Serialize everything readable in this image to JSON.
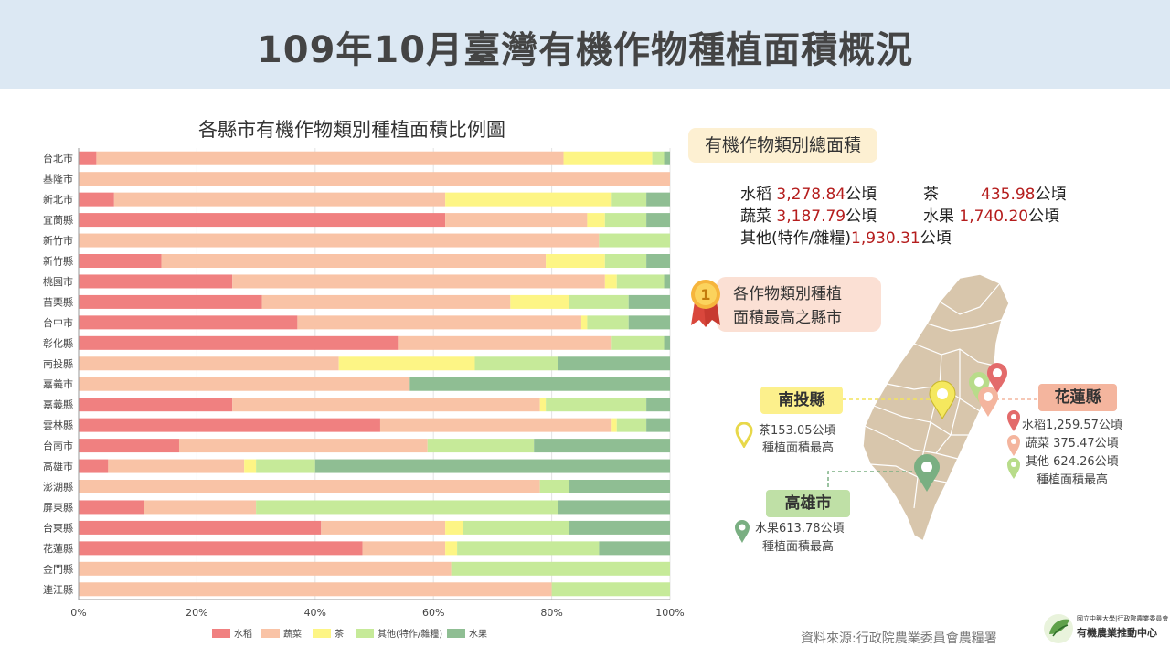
{
  "title": "109年10月臺灣有機作物種植面積概況",
  "colors": {
    "rice": "#f08080",
    "veg": "#f9c3a6",
    "tea": "#fdf585",
    "other": "#c6ea99",
    "fruit": "#8fbe93"
  },
  "chart_data": {
    "type": "bar",
    "orientation": "horizontal",
    "stacked": "percent",
    "title": "各縣市有機作物類別種植面積比例圖",
    "categories": [
      "台北市",
      "基隆市",
      "新北市",
      "宜蘭縣",
      "新竹市",
      "新竹縣",
      "桃園市",
      "苗栗縣",
      "台中市",
      "彰化縣",
      "南投縣",
      "嘉義市",
      "嘉義縣",
      "雲林縣",
      "台南市",
      "高雄市",
      "澎湖縣",
      "屏東縣",
      "台東縣",
      "花蓮縣",
      "金門縣",
      "連江縣"
    ],
    "series": [
      {
        "name": "水稻",
        "values": [
          3,
          0,
          6,
          62,
          0,
          14,
          26,
          31,
          37,
          54,
          0,
          0,
          26,
          51,
          17,
          5,
          0,
          11,
          41,
          48,
          0,
          0
        ]
      },
      {
        "name": "蔬菜",
        "values": [
          79,
          100,
          56,
          24,
          88,
          65,
          63,
          42,
          48,
          36,
          44,
          56,
          52,
          39,
          42,
          23,
          78,
          19,
          21,
          14,
          63,
          80
        ]
      },
      {
        "name": "茶",
        "values": [
          15,
          0,
          28,
          3,
          0,
          10,
          2,
          10,
          1,
          0,
          23,
          0,
          1,
          1,
          0,
          2,
          0,
          0,
          3,
          2,
          0,
          0
        ]
      },
      {
        "name": "其他(特作/雜糧)",
        "values": [
          2,
          0,
          6,
          7,
          12,
          7,
          8,
          10,
          7,
          9,
          14,
          0,
          17,
          5,
          18,
          10,
          5,
          51,
          18,
          24,
          37,
          20
        ]
      },
      {
        "name": "水果",
        "values": [
          1,
          0,
          4,
          4,
          0,
          4,
          1,
          7,
          7,
          1,
          19,
          44,
          4,
          4,
          23,
          60,
          17,
          19,
          17,
          12,
          0,
          0
        ]
      }
    ],
    "xlabel": "",
    "ylabel": "",
    "xlim": [
      0,
      100
    ],
    "x_ticks": [
      "0%",
      "20%",
      "40%",
      "60%",
      "80%",
      "100%"
    ],
    "legend_position": "bottom"
  },
  "totals": {
    "title": "有機作物類別總面積",
    "unit": "公頃",
    "items": [
      {
        "name": "水稻",
        "value": "3,278.84"
      },
      {
        "name": "茶",
        "value": "435.98"
      },
      {
        "name": "蔬菜",
        "value": "3,187.79"
      },
      {
        "name": "水果",
        "value": "1,740.20"
      },
      {
        "name": "其他(特作/雜糧)",
        "value": "1,930.31"
      }
    ]
  },
  "top": {
    "medal": "1",
    "line1": "各作物類別種植",
    "line2": "面積最高之縣市",
    "nantou": {
      "label": "南投縣",
      "line1": "茶153.05公頃",
      "line2": "種植面積最高"
    },
    "hualien": {
      "label": "花蓮縣",
      "line1": "水稻1,259.57公頃",
      "line2": "蔬菜 375.47公頃",
      "line3": "其他 624.26公頃",
      "line4": "種植面積最高"
    },
    "kaohsiung": {
      "label": "高雄市",
      "line1": "水果613.78公頃",
      "line2": "種植面積最高"
    }
  },
  "source": "資料來源:行政院農業委員會農糧署",
  "logo": {
    "sub": "國立中興大學|行政院農業委員會",
    "main": "有機農業推動中心"
  }
}
